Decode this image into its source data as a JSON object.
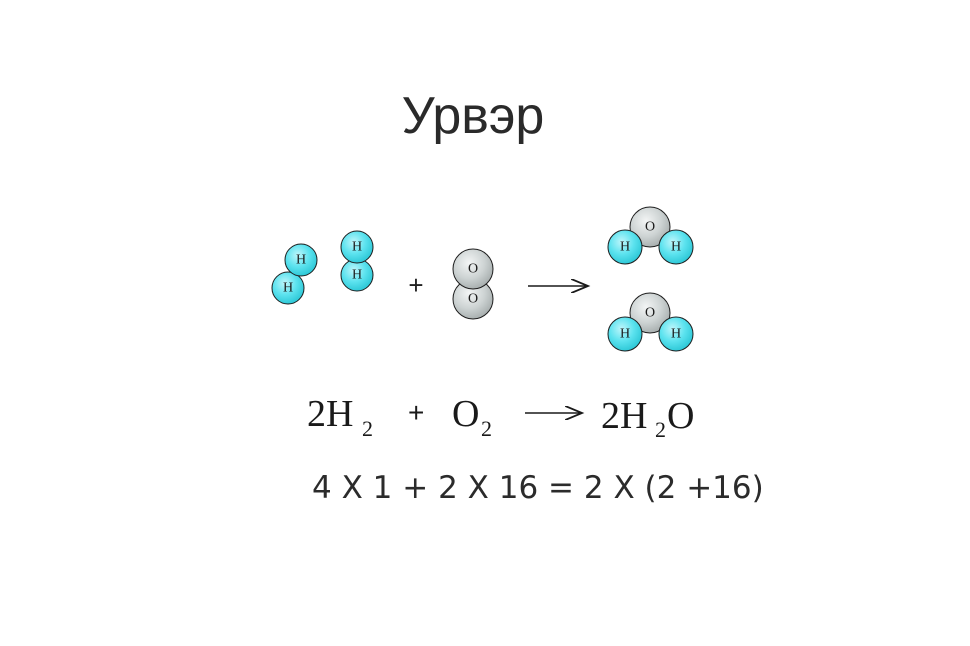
{
  "title": "Урвэр",
  "reaction": {
    "hydrogen_label": "H",
    "oxygen_label": "O",
    "plus": "+",
    "equation": {
      "coef_h2": "2H",
      "sub_h2": "2",
      "o2": "O",
      "sub_o2": "2",
      "product_prefix": "2H",
      "product_sub": "2",
      "product_suffix": "O"
    }
  },
  "mass_equation": "4 X 1 + 2 X 16 = 2 X (2 +16)",
  "colors": {
    "hydrogen": "#5de3ef",
    "oxygen": "#c9cfcf",
    "stroke": "#1e1e1e"
  }
}
